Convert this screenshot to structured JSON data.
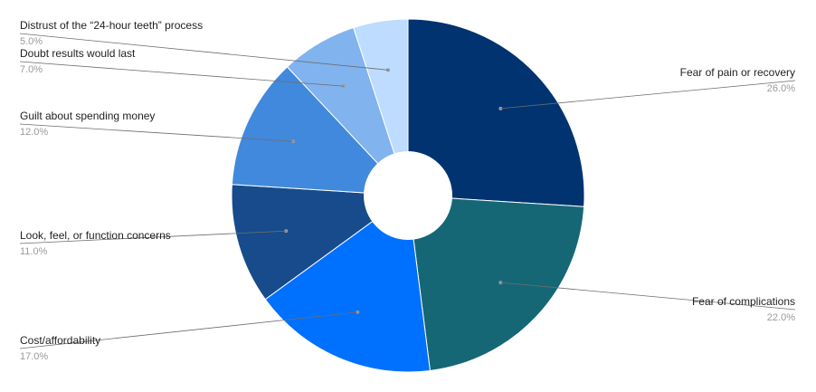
{
  "chart_data": {
    "type": "pie",
    "donut": true,
    "slices": [
      {
        "label": "Fear of pain or recovery",
        "value": 26.0,
        "display": "26.0%",
        "color": "#003370"
      },
      {
        "label": "Fear of complications",
        "value": 22.0,
        "display": "22.0%",
        "color": "#156776"
      },
      {
        "label": "Cost/affordability",
        "value": 17.0,
        "display": "17.0%",
        "color": "#0070ff"
      },
      {
        "label": "Look, feel, or function concerns",
        "value": 11.0,
        "display": "11.0%",
        "color": "#174b8b"
      },
      {
        "label": "Guilt about spending money",
        "value": 12.0,
        "display": "12.0%",
        "color": "#4189dc"
      },
      {
        "label": "Doubt results would last",
        "value": 7.0,
        "display": "7.0%",
        "color": "#81b3ef"
      },
      {
        "label": "Distrust of the “24-hour teeth” process",
        "value": 5.0,
        "display": "5.0%",
        "color": "#bedcff"
      }
    ],
    "start_angle_deg": 0,
    "direction": "clockwise",
    "legend": "none"
  }
}
